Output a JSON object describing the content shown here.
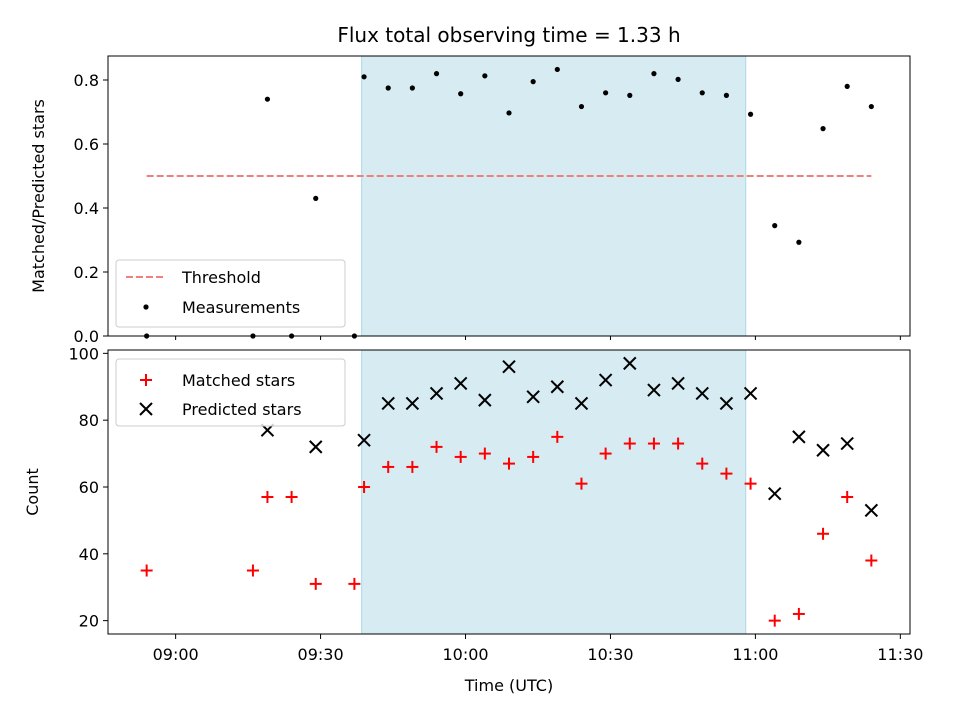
{
  "chart_data": [
    {
      "type": "scatter",
      "title": "Flux total observing time = 1.33 h",
      "ylabel": "Matched/Predicted stars",
      "xlim": [
        "08:46",
        "11:32"
      ],
      "ylim": [
        0,
        0.875
      ],
      "yticks": [
        "0.0",
        "0.2",
        "0.4",
        "0.6",
        "0.8"
      ],
      "shaded_region": {
        "from": "09:38:30",
        "to": "10:58",
        "color": "#add8e6"
      },
      "threshold": {
        "name": "Threshold",
        "value": 0.5,
        "from": "08:54",
        "to": "11:24",
        "color": "#f08080"
      },
      "series": [
        {
          "name": "Measurements",
          "color": "#000000",
          "x": [
            "08:54",
            "09:16",
            "09:19",
            "09:24",
            "09:29",
            "09:37",
            "09:39",
            "09:44",
            "09:49",
            "09:54",
            "09:59",
            "10:04",
            "10:09",
            "10:14",
            "10:19",
            "10:24",
            "10:29",
            "10:34",
            "10:39",
            "10:44",
            "10:49",
            "10:54",
            "10:59",
            "11:04",
            "11:09",
            "11:14",
            "11:19",
            "11:24"
          ],
          "y": [
            0.0,
            0.0,
            0.74,
            0.0,
            0.43,
            0.0,
            0.81,
            0.775,
            0.775,
            0.82,
            0.757,
            0.813,
            0.697,
            0.795,
            0.833,
            0.717,
            0.76,
            0.752,
            0.82,
            0.802,
            0.76,
            0.752,
            0.693,
            0.345,
            0.293,
            0.648,
            0.78,
            0.717
          ]
        }
      ]
    },
    {
      "type": "scatter",
      "xlabel": "Time (UTC)",
      "ylabel": "Count",
      "xlim": [
        "08:46",
        "11:32"
      ],
      "ylim": [
        16,
        101
      ],
      "xticks": [
        "09:00",
        "09:30",
        "10:00",
        "10:30",
        "11:00",
        "11:30"
      ],
      "yticks": [
        "20",
        "40",
        "60",
        "80",
        "100"
      ],
      "shaded_region": {
        "from": "09:38:30",
        "to": "10:58",
        "color": "#add8e6"
      },
      "series": [
        {
          "name": "Matched stars",
          "marker": "+",
          "color": "#ff0000",
          "x": [
            "08:54",
            "09:16",
            "09:19",
            "09:24",
            "09:29",
            "09:37",
            "09:39",
            "09:44",
            "09:49",
            "09:54",
            "09:59",
            "10:04",
            "10:09",
            "10:14",
            "10:19",
            "10:24",
            "10:29",
            "10:34",
            "10:39",
            "10:44",
            "10:49",
            "10:54",
            "10:59",
            "11:04",
            "11:09",
            "11:14",
            "11:19",
            "11:24"
          ],
          "y": [
            35,
            35,
            57,
            57,
            31,
            31,
            60,
            66,
            66,
            72,
            69,
            70,
            67,
            69,
            75,
            61,
            70,
            73,
            73,
            73,
            67,
            64,
            61,
            20,
            22,
            46,
            57,
            38
          ]
        },
        {
          "name": "Predicted stars",
          "marker": "x",
          "color": "#000000",
          "x": [
            "09:19",
            "09:29",
            "09:39",
            "09:44",
            "09:49",
            "09:54",
            "09:59",
            "10:04",
            "10:09",
            "10:14",
            "10:19",
            "10:24",
            "10:29",
            "10:34",
            "10:39",
            "10:44",
            "10:49",
            "10:54",
            "10:59",
            "11:04",
            "11:09",
            "11:14",
            "11:19",
            "11:24"
          ],
          "y": [
            77,
            72,
            74,
            85,
            85,
            88,
            91,
            86,
            96,
            87,
            90,
            85,
            92,
            97,
            89,
            91,
            88,
            85,
            88,
            58,
            75,
            71,
            73,
            53
          ]
        }
      ]
    }
  ]
}
